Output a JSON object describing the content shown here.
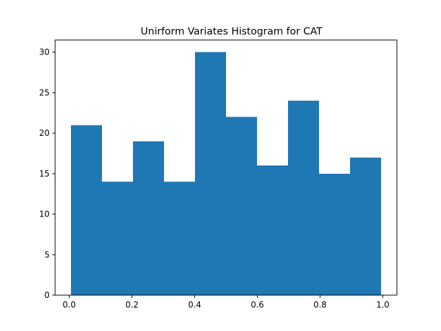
{
  "chart_data": {
    "type": "bar",
    "title": "Unirform Variates Histogram for CAT",
    "xlabel": "",
    "ylabel": "",
    "bins": [
      {
        "start": 0.005,
        "end": 0.104,
        "count": 21
      },
      {
        "start": 0.104,
        "end": 0.203,
        "count": 14
      },
      {
        "start": 0.203,
        "end": 0.302,
        "count": 19
      },
      {
        "start": 0.302,
        "end": 0.401,
        "count": 14
      },
      {
        "start": 0.401,
        "end": 0.5,
        "count": 30
      },
      {
        "start": 0.5,
        "end": 0.599,
        "count": 22
      },
      {
        "start": 0.599,
        "end": 0.698,
        "count": 16
      },
      {
        "start": 0.698,
        "end": 0.797,
        "count": 24
      },
      {
        "start": 0.797,
        "end": 0.896,
        "count": 15
      },
      {
        "start": 0.896,
        "end": 0.995,
        "count": 17
      }
    ],
    "xlim": [
      -0.045,
      1.045
    ],
    "ylim": [
      0,
      31.5
    ],
    "xticks": [
      {
        "value": 0.0,
        "label": "0.0"
      },
      {
        "value": 0.2,
        "label": "0.2"
      },
      {
        "value": 0.4,
        "label": "0.4"
      },
      {
        "value": 0.6,
        "label": "0.6"
      },
      {
        "value": 0.8,
        "label": "0.8"
      },
      {
        "value": 1.0,
        "label": "1.0"
      }
    ],
    "yticks": [
      {
        "value": 0,
        "label": "0"
      },
      {
        "value": 5,
        "label": "5"
      },
      {
        "value": 10,
        "label": "10"
      },
      {
        "value": 15,
        "label": "15"
      },
      {
        "value": 20,
        "label": "20"
      },
      {
        "value": 25,
        "label": "25"
      },
      {
        "value": 30,
        "label": "30"
      }
    ],
    "bar_color": "#1f77b4",
    "grid": false,
    "legend": "none"
  }
}
